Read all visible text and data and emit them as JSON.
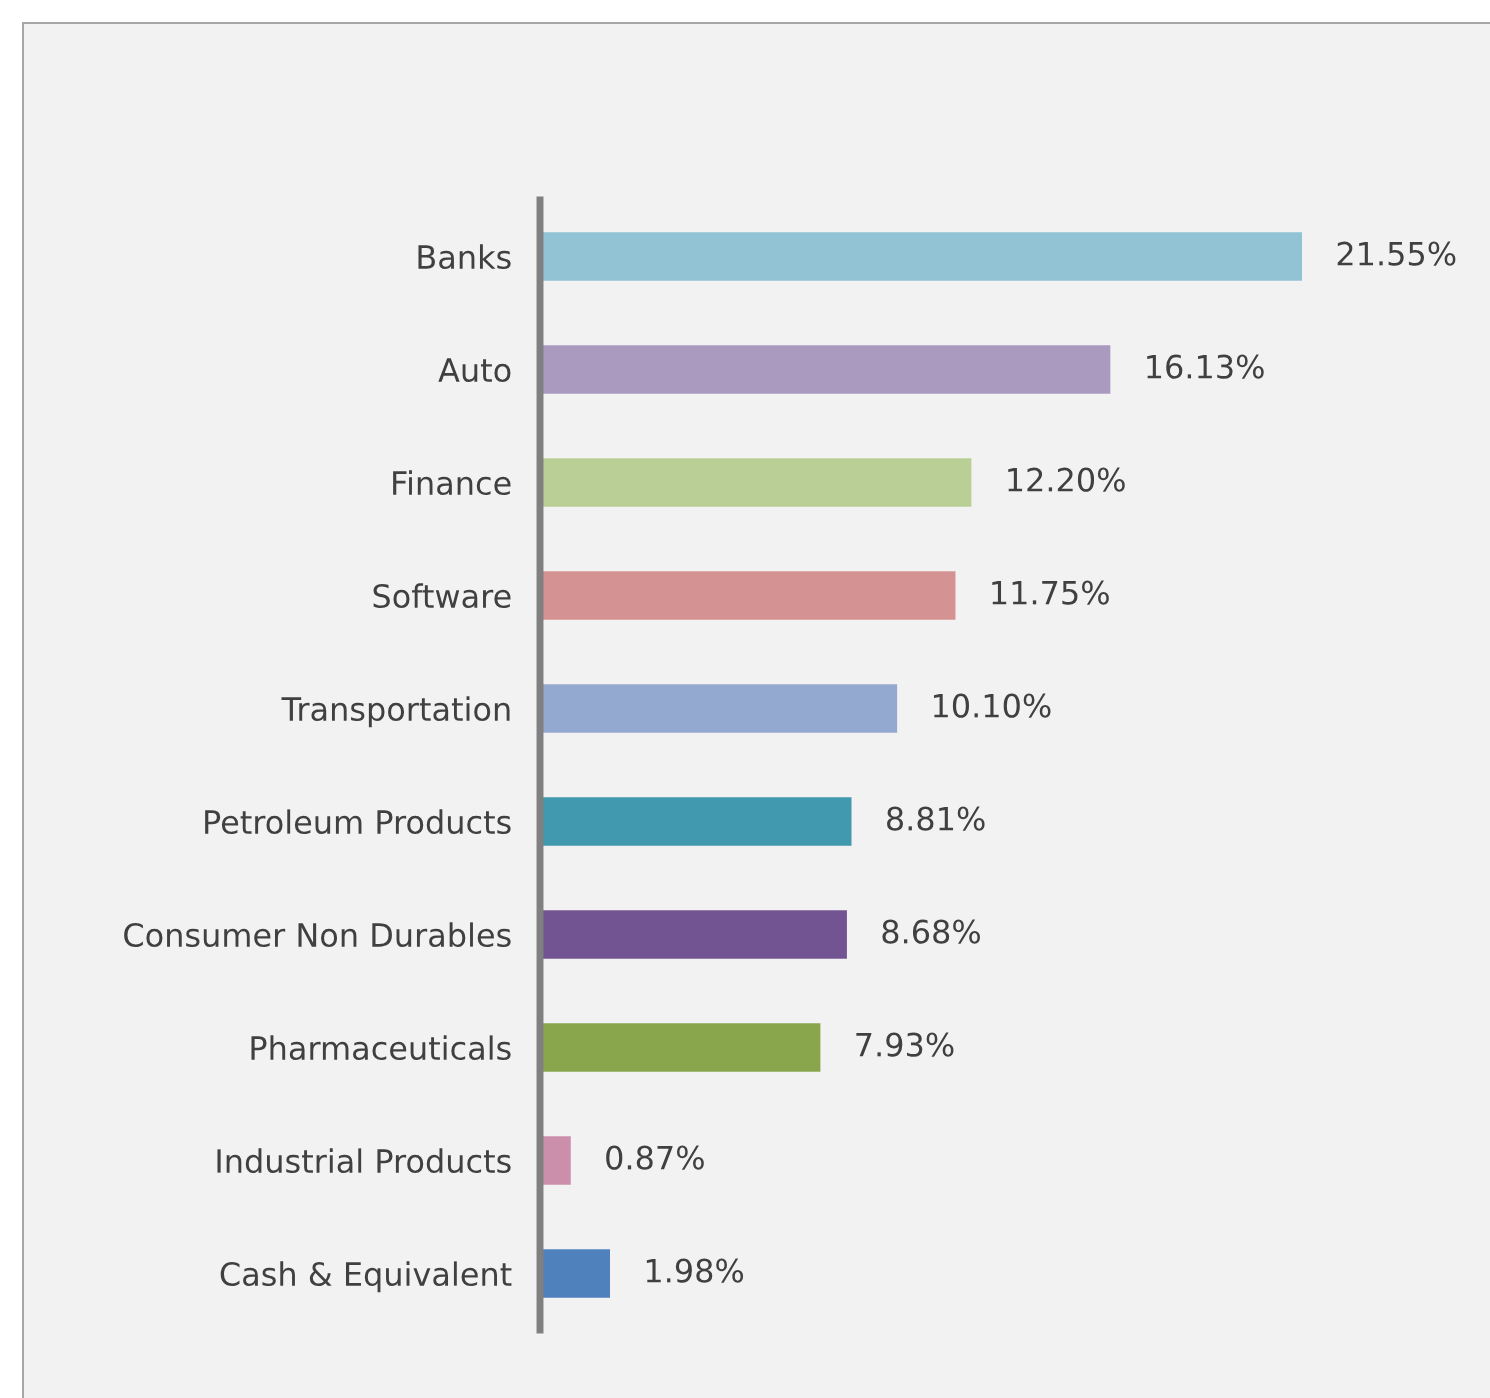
{
  "chart_data": {
    "type": "bar",
    "orientation": "horizontal",
    "categories": [
      "Banks",
      "Auto",
      "Finance",
      "Software",
      "Transportation",
      "Petroleum Products",
      "Consumer Non Durables",
      "Pharmaceuticals",
      "Industrial Products",
      "Cash & Equivalent"
    ],
    "values": [
      21.55,
      16.13,
      12.2,
      11.75,
      10.1,
      8.81,
      8.68,
      7.93,
      0.87,
      1.98
    ],
    "colors": [
      "#92c3d5",
      "#ab9ac0",
      "#bacf96",
      "#d49392",
      "#93a9d0",
      "#4099af",
      "#735492",
      "#8aa64c",
      "#cc8fab",
      "#4f81bd"
    ],
    "value_labels": [
      "21.55%",
      "16.13%",
      "12.20%",
      "11.75%",
      "10.10%",
      "8.81%",
      "8.68%",
      "7.93%",
      "0.87%",
      "1.98%"
    ],
    "tick_labels": "y",
    "grid": false,
    "legend": false
  }
}
